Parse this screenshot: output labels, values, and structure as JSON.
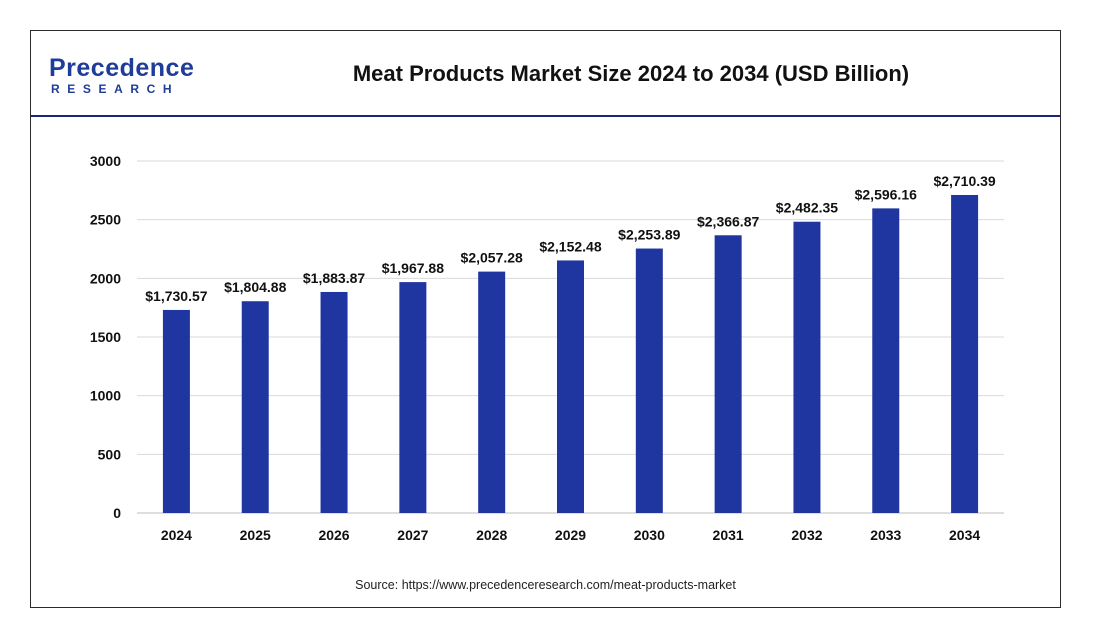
{
  "header": {
    "logo": {
      "top": "Precedence",
      "bottom": "RESEARCH"
    },
    "title": "Meat Products Market Size 2024 to 2034 (USD Billion)"
  },
  "colors": {
    "bar": "#1f35a0",
    "brand": "#1f3c99",
    "header_rule": "#1a237e",
    "grid": "#d9d9d9",
    "text": "#111111"
  },
  "chart_data": {
    "type": "bar",
    "categories": [
      "2024",
      "2025",
      "2026",
      "2027",
      "2028",
      "2029",
      "2030",
      "2031",
      "2032",
      "2033",
      "2034"
    ],
    "values": [
      1730.57,
      1804.88,
      1883.87,
      1967.88,
      2057.28,
      2152.48,
      2253.89,
      2366.87,
      2482.35,
      2596.16,
      2710.39
    ],
    "data_labels": [
      "$1,730.57",
      "$1,804.88",
      "$1,883.87",
      "$1,967.88",
      "$2,057.28",
      "$2,152.48",
      "$2,253.89",
      "$2,366.87",
      "$2,482.35",
      "$2,596.16",
      "$2,710.39"
    ],
    "y_ticks": [
      "0",
      "500",
      "1000",
      "1500",
      "2000",
      "2500",
      "3000"
    ],
    "ylim": [
      0,
      3000
    ],
    "grid": true,
    "legend": false,
    "title": "Meat Products Market Size 2024 to 2034 (USD Billion)"
  },
  "footer": {
    "source": "Source: https://www.precedenceresearch.com/meat-products-market"
  }
}
